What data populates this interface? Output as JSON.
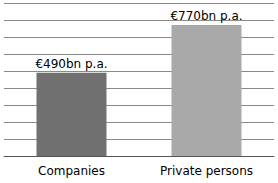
{
  "chart_data": {
    "type": "bar",
    "categories": [
      "Companies",
      "Private persons"
    ],
    "values": [
      490,
      770
    ],
    "value_labels": [
      "€490bn p.a.",
      "€770bn p.a."
    ],
    "colors": [
      "#707070",
      "#a9a9a9"
    ],
    "ylim": [
      0,
      900
    ],
    "yticks": [
      0,
      100,
      200,
      300,
      400,
      500,
      600,
      700,
      800,
      900
    ],
    "grid": true,
    "data_labels": true,
    "tick_labels": "x"
  }
}
